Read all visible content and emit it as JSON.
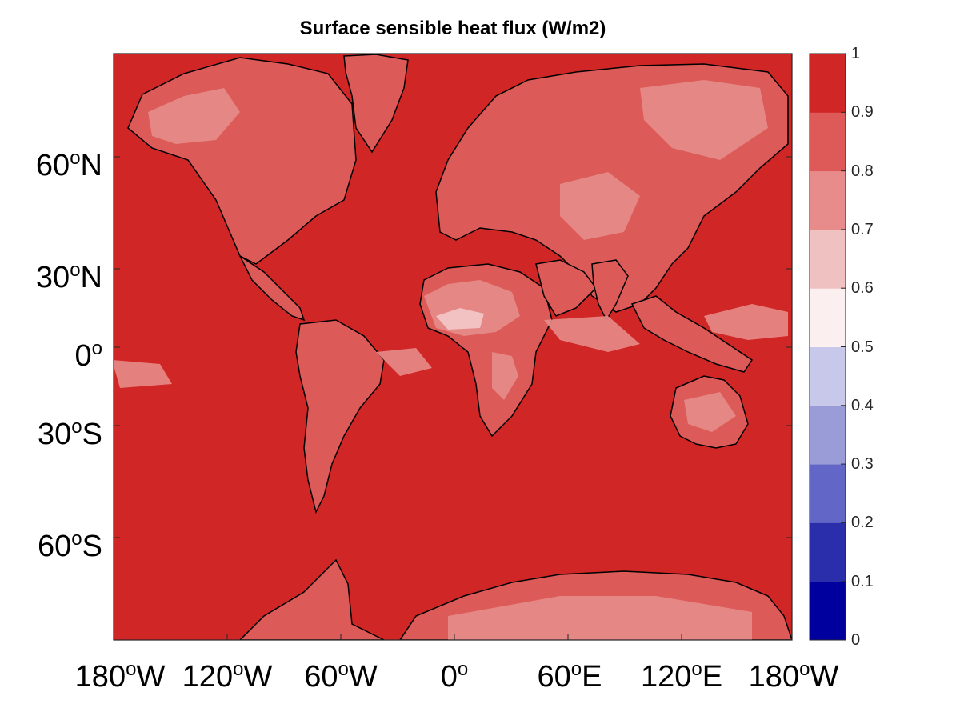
{
  "title": "Surface sensible heat flux (W/m2)",
  "map": {
    "background_color": "#d12626",
    "land_color": "#dc5a57",
    "light_land_color": "#e68c8a",
    "lightest_color": "#f2c2c2",
    "coastline_color": "#000000",
    "lat_ticks": [
      {
        "deg": "60",
        "hemi": "N"
      },
      {
        "deg": "30",
        "hemi": "N"
      },
      {
        "deg": "0",
        "hemi": ""
      },
      {
        "deg": "30",
        "hemi": "S"
      },
      {
        "deg": "60",
        "hemi": "S"
      }
    ],
    "lon_ticks": [
      {
        "deg": "180",
        "hemi": "W"
      },
      {
        "deg": "120",
        "hemi": "W"
      },
      {
        "deg": "60",
        "hemi": "W"
      },
      {
        "deg": "0",
        "hemi": ""
      },
      {
        "deg": "60",
        "hemi": "E"
      },
      {
        "deg": "120",
        "hemi": "E"
      },
      {
        "deg": "180",
        "hemi": "W"
      }
    ],
    "degree_symbol": "o"
  },
  "colorbar": {
    "ticks": [
      "0",
      "0.1",
      "0.2",
      "0.3",
      "0.4",
      "0.5",
      "0.6",
      "0.7",
      "0.8",
      "0.9",
      "1"
    ],
    "colors": [
      "#00009e",
      "#2a2eaa",
      "#6266c6",
      "#9a9cd8",
      "#c8c9ea",
      "#fbefef",
      "#f0c1c1",
      "#e78c8b",
      "#de5a58",
      "#d12626"
    ]
  }
}
